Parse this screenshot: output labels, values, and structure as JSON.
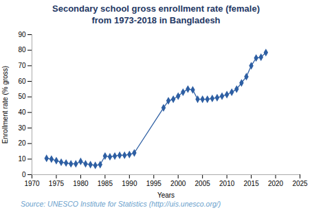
{
  "chart_data": {
    "type": "line",
    "title": "Secondary school gross enrollment rate (female)",
    "subtitle": "from 1973-2018 in Bangladesh",
    "xlabel": "Years",
    "ylabel": "Enrollment rate (% gross)",
    "source": "Source: UNESCO Institute for Statistics (http://uis.unesco.org/)",
    "x": [
      1973,
      1974,
      1975,
      1976,
      1977,
      1978,
      1979,
      1980,
      1981,
      1982,
      1983,
      1984,
      1985,
      1986,
      1987,
      1988,
      1989,
      1990,
      1991,
      1997,
      1998,
      1999,
      2000,
      2001,
      2002,
      2003,
      2004,
      2005,
      2006,
      2007,
      2008,
      2009,
      2010,
      2011,
      2012,
      2013,
      2014,
      2015,
      2016,
      2017,
      2018
    ],
    "values": [
      10.5,
      10.0,
      9.0,
      8.0,
      7.5,
      7.0,
      7.0,
      8.5,
      7.0,
      6.5,
      6.0,
      6.5,
      12.0,
      11.5,
      12.0,
      12.5,
      12.5,
      13.0,
      14.0,
      43.0,
      47.5,
      48.5,
      50.5,
      53.0,
      55.0,
      54.5,
      48.5,
      48.5,
      48.5,
      49.0,
      49.5,
      50.5,
      51.5,
      53.0,
      55.0,
      59.0,
      63.0,
      70.0,
      75.0,
      75.5,
      78.5
    ],
    "color": "#2E5FA3",
    "marker": "diamond",
    "xlim": [
      1970,
      2025
    ],
    "xticks": [
      1970,
      1975,
      1980,
      1985,
      1990,
      1995,
      2000,
      2005,
      2010,
      2015,
      2020,
      2025
    ],
    "ylim": [
      0,
      90
    ],
    "yticks": [
      0,
      10,
      20,
      30,
      40,
      50,
      60,
      70,
      80,
      90
    ],
    "grid": false
  }
}
